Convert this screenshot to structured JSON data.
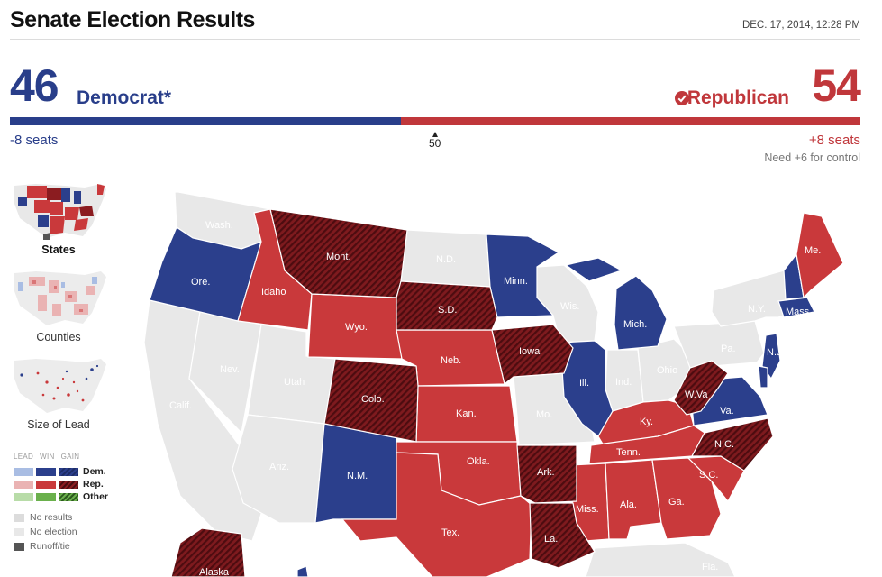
{
  "header": {
    "title": "Senate Election Results",
    "timestamp": "DEC. 17, 2014, 12:28 PM"
  },
  "tally": {
    "dem_count": "46",
    "dem_label": "Democrat*",
    "rep_count": "54",
    "rep_label": "Republican",
    "winner_icon": "check-circle-icon",
    "dem_change": "-8 seats",
    "rep_change": "+8 seats",
    "control_note": "Need +6 for control",
    "marker_label": "50",
    "total_seats": 100,
    "dem_seats": 46,
    "rep_seats": 54
  },
  "views": [
    {
      "label": "States",
      "selected": true
    },
    {
      "label": "Counties",
      "selected": false
    },
    {
      "label": "Size of Lead",
      "selected": false
    }
  ],
  "legend": {
    "columns": [
      "LEAD",
      "WIN",
      "GAIN"
    ],
    "rows": [
      {
        "label": "Dem.",
        "colors": [
          "#a9bde3",
          "#2b3f8c",
          "#1e2d66"
        ]
      },
      {
        "label": "Rep.",
        "colors": [
          "#eab3b3",
          "#c9393b",
          "#8b1c20"
        ]
      },
      {
        "label": "Other",
        "colors": [
          "#b8dca8",
          "#6ab04c",
          "#3e7b2a"
        ]
      }
    ],
    "status": [
      {
        "label": "No results",
        "color": "#dcdcdc"
      },
      {
        "label": "No election",
        "color": "#e8e8e8"
      },
      {
        "label": "Runoff/tie",
        "color": "#555555"
      }
    ]
  },
  "colors": {
    "dem": "#2b3f8c",
    "rep": "#c9393b",
    "rep_gain": "#7e1a1e",
    "no_election": "#e8e8e8"
  },
  "map_labels": {
    "wash": "Wash.",
    "ore": "Ore.",
    "idaho": "Idaho",
    "mont": "Mont.",
    "nd": "N.D.",
    "minn": "Minn.",
    "wis": "Wis.",
    "mich": "Mich.",
    "me": "Me.",
    "ny": "N.Y.",
    "mass": "Mass.",
    "sd": "S.D.",
    "wyo": "Wyo.",
    "nev": "Nev.",
    "utah": "Utah",
    "calif": "Calif.",
    "neb": "Neb.",
    "iowa": "Iowa",
    "ill": "Ill.",
    "ind": "Ind.",
    "ohio": "Ohio",
    "pa": "Pa.",
    "nj": "N.J.",
    "colo": "Colo.",
    "kan": "Kan.",
    "mo": "Mo.",
    "wva": "W.Va",
    "va": "Va.",
    "ky": "Ky.",
    "tenn": "Tenn.",
    "nc": "N.C.",
    "sc": "S.C.",
    "ariz": "Ariz.",
    "nm": "N.M.",
    "okla": "Okla.",
    "ark": "Ark.",
    "miss": "Miss.",
    "ala": "Ala.",
    "ga": "Ga.",
    "tex": "Tex.",
    "la": "La.",
    "fla": "Fla.",
    "alaska": "Alaska"
  }
}
